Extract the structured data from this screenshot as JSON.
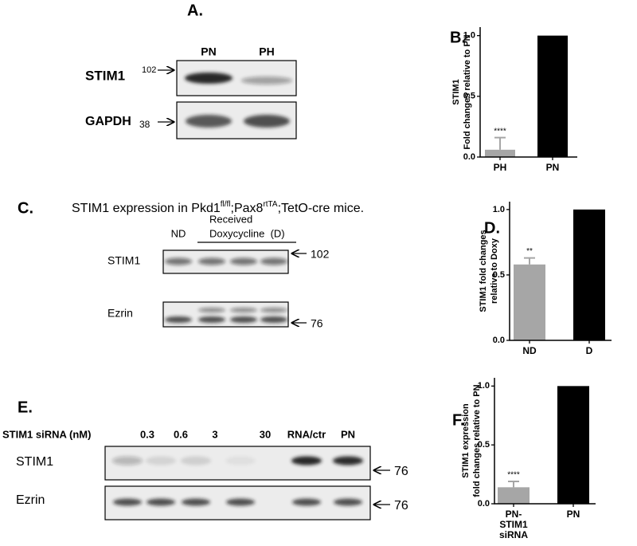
{
  "blots": [
    {
      "panel_label": "A.",
      "lanes": [
        "PN",
        "PH"
      ],
      "rows": [
        {
          "name": "STIM1",
          "marker": "102"
        },
        {
          "name": "GAPDH",
          "marker": "38"
        }
      ]
    },
    {
      "panel_label": "C.",
      "title_parts": [
        "STIM1 expression in Pkd1",
        "fl/fl",
        ";Pax8",
        "rtTA",
        ";TetO-cre mice."
      ],
      "lanes": [
        "ND",
        "Received",
        "Doxycycline  (D)"
      ],
      "rows": [
        {
          "name": "STIM1",
          "marker": "102"
        },
        {
          "name": "Ezrin",
          "marker": "76"
        }
      ]
    },
    {
      "panel_label": "E.",
      "header": "STIM1 siRNA (nM)",
      "lanes": [
        "0.3",
        "0.6",
        "3",
        "30",
        "RNA/ctr",
        "PN"
      ],
      "rows": [
        {
          "name": "STIM1",
          "marker": "76"
        },
        {
          "name": "Ezrin",
          "marker": "76"
        }
      ]
    }
  ],
  "chart_data": [
    {
      "type": "bar",
      "panel_label": "B.",
      "ylabel": [
        "STIM1",
        "Fold changes relative to PN"
      ],
      "categories": [
        "PH",
        "PN"
      ],
      "values": [
        0.06,
        1.0
      ],
      "errors": [
        0.1,
        0
      ],
      "annotations": [
        "****",
        null
      ],
      "colors": [
        "#a6a6a6",
        "#000000"
      ],
      "ylim": [
        0,
        1.07
      ],
      "yticks": [
        {
          "value": 0,
          "label": "0.0"
        },
        {
          "value": 0.5,
          "label": "0.5"
        },
        {
          "value": 1,
          "label": "1.0"
        }
      ]
    },
    {
      "type": "bar",
      "panel_label": "D.",
      "ylabel": [
        "STIM1 fold changes",
        "relative to Doxy"
      ],
      "categories": [
        "ND",
        "D"
      ],
      "values": [
        0.58,
        1.0
      ],
      "errors": [
        0.05,
        0
      ],
      "annotations": [
        "**",
        null
      ],
      "colors": [
        "#a6a6a6",
        "#000000"
      ],
      "ylim": [
        0,
        1.06
      ],
      "yticks": [
        {
          "value": 0,
          "label": "0.0"
        },
        {
          "value": 0.5,
          "label": "0.5"
        },
        {
          "value": 1,
          "label": "1.0"
        }
      ]
    },
    {
      "type": "bar",
      "panel_label": "F.",
      "ylabel": [
        "STIM1 expression",
        "fold changes relative to PN"
      ],
      "categories": [
        "PN-\nSTIM1\nsiRNA",
        "PN"
      ],
      "values": [
        0.14,
        1.0
      ],
      "errors": [
        0.05,
        0
      ],
      "annotations": [
        "****",
        null
      ],
      "colors": [
        "#a6a6a6",
        "#000000"
      ],
      "ylim": [
        0,
        1.07
      ],
      "yticks": [
        {
          "value": 0,
          "label": "0.0"
        },
        {
          "value": 0.5,
          "label": "0.5"
        },
        {
          "value": 1,
          "label": "1.0"
        }
      ]
    }
  ]
}
